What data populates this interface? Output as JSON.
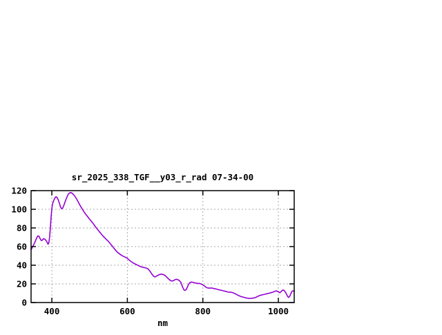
{
  "window": {
    "background": "#ffffff"
  },
  "chart_data": {
    "type": "line",
    "title": "sr_2025_338_TGF__y03_r_rad 07-34-00",
    "xlabel": "nm",
    "ylabel": "",
    "xlim": [
      345,
      1042
    ],
    "ylim": [
      0,
      120
    ],
    "xticks": [
      400,
      600,
      800,
      1000
    ],
    "yticks": [
      0,
      20,
      40,
      60,
      80,
      100,
      120
    ],
    "grid": true,
    "grid_style": "dashed",
    "legend_position": "none",
    "line_color": "#9400D3",
    "grid_color": "#a6a6a6",
    "border_color": "#000000",
    "text_color": "#000000",
    "series": [
      {
        "x": [
          345,
          348,
          352,
          356,
          360,
          363,
          366,
          369,
          372,
          375,
          378,
          381,
          384,
          387,
          390,
          392,
          394,
          396,
          398,
          400,
          402,
          405,
          408,
          411,
          414,
          417,
          420,
          423,
          426,
          429,
          432,
          435,
          438,
          441,
          444,
          447,
          450,
          453,
          457,
          461,
          465,
          469,
          473,
          477,
          481,
          485,
          490,
          495,
          500,
          505,
          510,
          515,
          520,
          525,
          530,
          535,
          540,
          545,
          550,
          555,
          560,
          565,
          570,
          575,
          580,
          585,
          590,
          595,
          600,
          605,
          610,
          615,
          620,
          625,
          630,
          635,
          640,
          645,
          650,
          655,
          660,
          665,
          670,
          673,
          676,
          680,
          685,
          690,
          695,
          700,
          705,
          710,
          715,
          718,
          722,
          726,
          730,
          734,
          738,
          742,
          746,
          750,
          753,
          756,
          759,
          762,
          766,
          770,
          775,
          780,
          785,
          790,
          795,
          800,
          805,
          810,
          815,
          820,
          825,
          830,
          835,
          840,
          845,
          850,
          855,
          860,
          865,
          870,
          875,
          880,
          885,
          890,
          895,
          900,
          905,
          910,
          915,
          920,
          925,
          930,
          935,
          940,
          945,
          950,
          955,
          960,
          965,
          970,
          975,
          980,
          985,
          990,
          995,
          1000,
          1004,
          1008,
          1012,
          1015,
          1018,
          1021,
          1024,
          1027,
          1030,
          1033,
          1036,
          1039,
          1042
        ],
        "y": [
          56.5,
          59,
          62,
          65.5,
          69.5,
          71.5,
          71,
          68.5,
          66.5,
          67,
          68.5,
          68,
          67,
          65,
          62.5,
          64,
          70,
          80,
          92,
          101,
          106,
          109.5,
          112,
          113.5,
          112.5,
          110,
          106.5,
          102.5,
          100.5,
          101.5,
          104.5,
          108,
          111,
          114,
          116.5,
          117.5,
          118,
          117.5,
          116,
          114,
          111.5,
          108.5,
          105.5,
          102.5,
          100,
          97.5,
          94.5,
          92,
          89.5,
          87,
          84.5,
          81.5,
          79,
          76.5,
          74,
          71.5,
          69.5,
          67.5,
          65.5,
          63,
          60.5,
          58,
          55.5,
          53.5,
          52,
          50.5,
          49.5,
          48.5,
          47.5,
          45.5,
          44,
          42.5,
          41.5,
          40.5,
          39.5,
          38.5,
          38,
          37.5,
          37,
          36,
          33.5,
          30.5,
          28,
          27.5,
          28,
          29,
          30,
          30.5,
          30,
          29,
          27,
          25,
          23.5,
          23,
          23.5,
          24.5,
          25,
          24.5,
          23.5,
          21.5,
          17,
          13.5,
          13,
          14,
          16.5,
          19.5,
          21.5,
          22,
          21.5,
          21,
          20.5,
          20.5,
          20,
          19,
          17.5,
          16,
          15.5,
          15.5,
          15.5,
          15,
          14.5,
          14,
          13.5,
          13,
          12.5,
          12,
          11.5,
          11,
          11,
          10.5,
          9.5,
          8.5,
          7.5,
          6.5,
          6,
          5.5,
          5,
          4.5,
          4.5,
          4.5,
          5,
          5.5,
          6.5,
          7.5,
          8,
          8.5,
          9,
          9.5,
          10,
          10.5,
          11,
          12,
          12.5,
          11.5,
          10.5,
          12,
          13.5,
          13,
          11.5,
          9.5,
          7,
          5.5,
          6.5,
          9.5,
          12,
          12.5,
          12
        ]
      }
    ]
  }
}
